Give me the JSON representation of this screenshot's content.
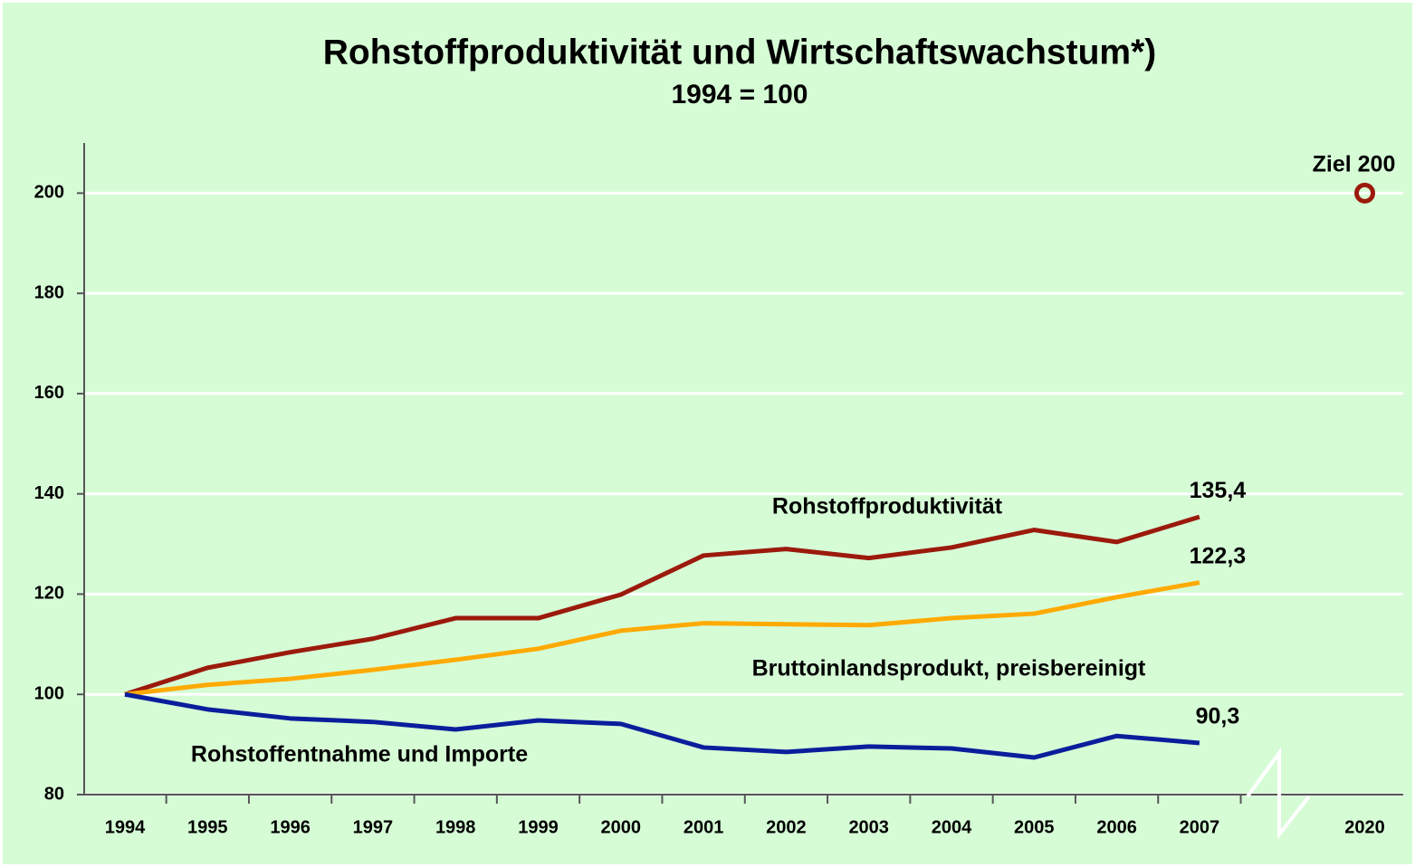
{
  "chart_data": {
    "type": "line",
    "title": "Rohstoffproduktivität  und Wirtschaftswachstum*)",
    "subtitle": "1994 = 100",
    "categories": [
      "1994",
      "1995",
      "1996",
      "1997",
      "1998",
      "1999",
      "2000",
      "2001",
      "2002",
      "2003",
      "2004",
      "2005",
      "2006",
      "2007",
      null,
      "2020"
    ],
    "ylim": [
      80,
      210
    ],
    "yticks": [
      80,
      100,
      120,
      140,
      160,
      180,
      200
    ],
    "grid": true,
    "series": [
      {
        "name": "Rohstoffproduktivität",
        "color": "#9b1a0c",
        "values": [
          100,
          105.3,
          108.4,
          111.1,
          115.2,
          115.2,
          119.9,
          127.7,
          129.0,
          127.2,
          129.3,
          132.8,
          130.4,
          135.4,
          null,
          null
        ],
        "value_labels": [
          null,
          null,
          null,
          null,
          null,
          null,
          null,
          null,
          null,
          null,
          null,
          null,
          null,
          "135,4",
          null,
          null
        ]
      },
      {
        "name": "Bruttoinlandsprodukt, preisbereinigt",
        "color": "#ffaa00",
        "values": [
          100,
          101.9,
          103.1,
          104.9,
          106.9,
          109.1,
          112.7,
          114.2,
          114.0,
          113.8,
          115.2,
          116.1,
          119.4,
          122.3,
          null,
          null
        ],
        "value_labels": [
          null,
          null,
          null,
          null,
          null,
          null,
          null,
          null,
          null,
          null,
          null,
          null,
          null,
          "122,3",
          null,
          null
        ]
      },
      {
        "name": "Rohstoffentnahme und Importe",
        "color": "#0a1e9c",
        "values": [
          100,
          97.0,
          95.2,
          94.5,
          93.0,
          94.8,
          94.1,
          89.4,
          88.5,
          89.6,
          89.2,
          87.4,
          91.7,
          90.3,
          null,
          null
        ],
        "value_labels": [
          null,
          null,
          null,
          null,
          null,
          null,
          null,
          null,
          null,
          null,
          null,
          null,
          null,
          "90,3",
          null,
          null
        ]
      }
    ],
    "target": {
      "label": "Ziel 200",
      "value": 200,
      "color": "#9b1a0c"
    }
  }
}
